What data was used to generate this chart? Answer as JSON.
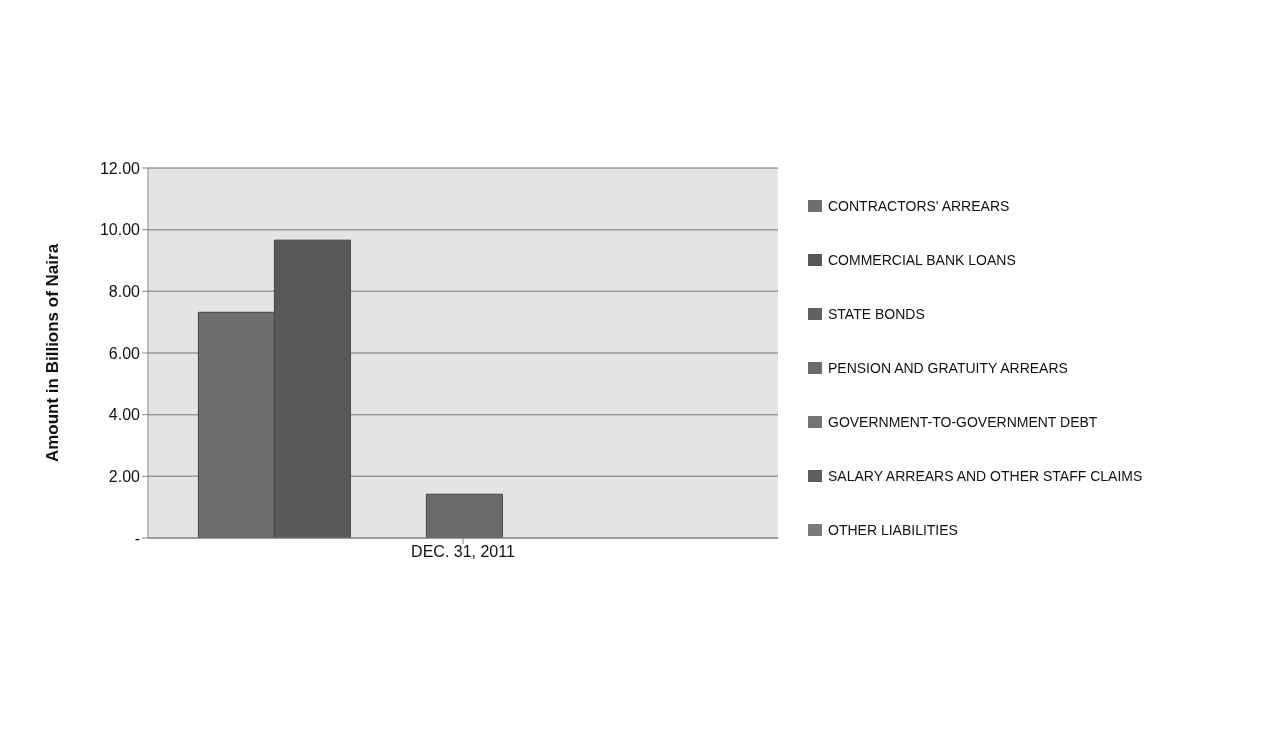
{
  "chart_data": {
    "type": "bar",
    "ylabel": "Amount in Billions of Naira",
    "categories": [
      "DEC. 31, 2011"
    ],
    "series": [
      {
        "name": "CONTRACTORS' ARREARS",
        "color": "#6e6e6e",
        "values": [
          7.32
        ]
      },
      {
        "name": "COMMERCIAL BANK LOANS",
        "color": "#585858",
        "values": [
          9.66
        ]
      },
      {
        "name": "STATE BONDS",
        "color": "#626262",
        "values": [
          0
        ]
      },
      {
        "name": "PENSION AND GRATUITY ARREARS",
        "color": "#6a6a6a",
        "values": [
          1.42
        ]
      },
      {
        "name": "GOVERNMENT-TO-GOVERNMENT DEBT",
        "color": "#747474",
        "values": [
          0
        ]
      },
      {
        "name": "SALARY ARREARS AND OTHER STAFF CLAIMS",
        "color": "#5e5e5e",
        "values": [
          0
        ]
      },
      {
        "name": "OTHER LIABILITIES",
        "color": "#7a7a7a",
        "values": [
          0
        ]
      }
    ],
    "ylim": [
      0,
      12
    ],
    "yticks": [
      {
        "value": 0,
        "label": "-"
      },
      {
        "value": 2,
        "label": "2.00"
      },
      {
        "value": 4,
        "label": "4.00"
      },
      {
        "value": 6,
        "label": "6.00"
      },
      {
        "value": 8,
        "label": "8.00"
      },
      {
        "value": 10,
        "label": "10.00"
      },
      {
        "value": 12,
        "label": "12.00"
      }
    ],
    "grid": "y",
    "legend": "right"
  }
}
